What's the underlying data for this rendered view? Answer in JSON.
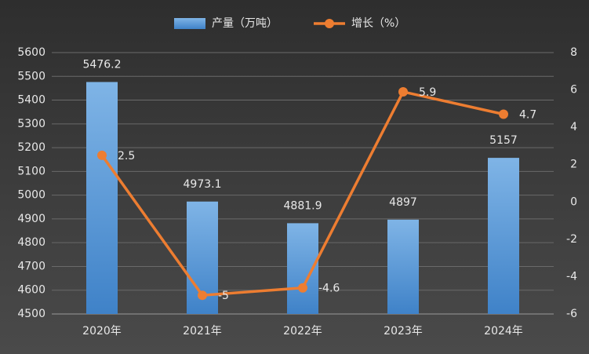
{
  "chart_data": {
    "type": "bar-line",
    "categories": [
      "2020年",
      "2021年",
      "2022年",
      "2023年",
      "2024年"
    ],
    "series": [
      {
        "name": "产量（万吨）",
        "type": "bar",
        "color": "#5b9bd5",
        "values": [
          5476.2,
          4973.1,
          4881.9,
          4897,
          5157
        ]
      },
      {
        "name": "增长（%）",
        "type": "line",
        "axis": "y2",
        "color": "#ed7d31",
        "values": [
          2.5,
          -5,
          -4.6,
          5.9,
          4.7
        ]
      }
    ],
    "ylim": [
      4500,
      5600
    ],
    "yticks": [
      4500,
      4600,
      4700,
      4800,
      4900,
      5000,
      5100,
      5200,
      5300,
      5400,
      5500,
      5600
    ],
    "y2lim": [
      -6,
      8
    ],
    "y2ticks": [
      -6,
      -4,
      -2,
      0,
      2,
      4,
      6,
      8
    ],
    "grid": true,
    "legend": "top"
  }
}
